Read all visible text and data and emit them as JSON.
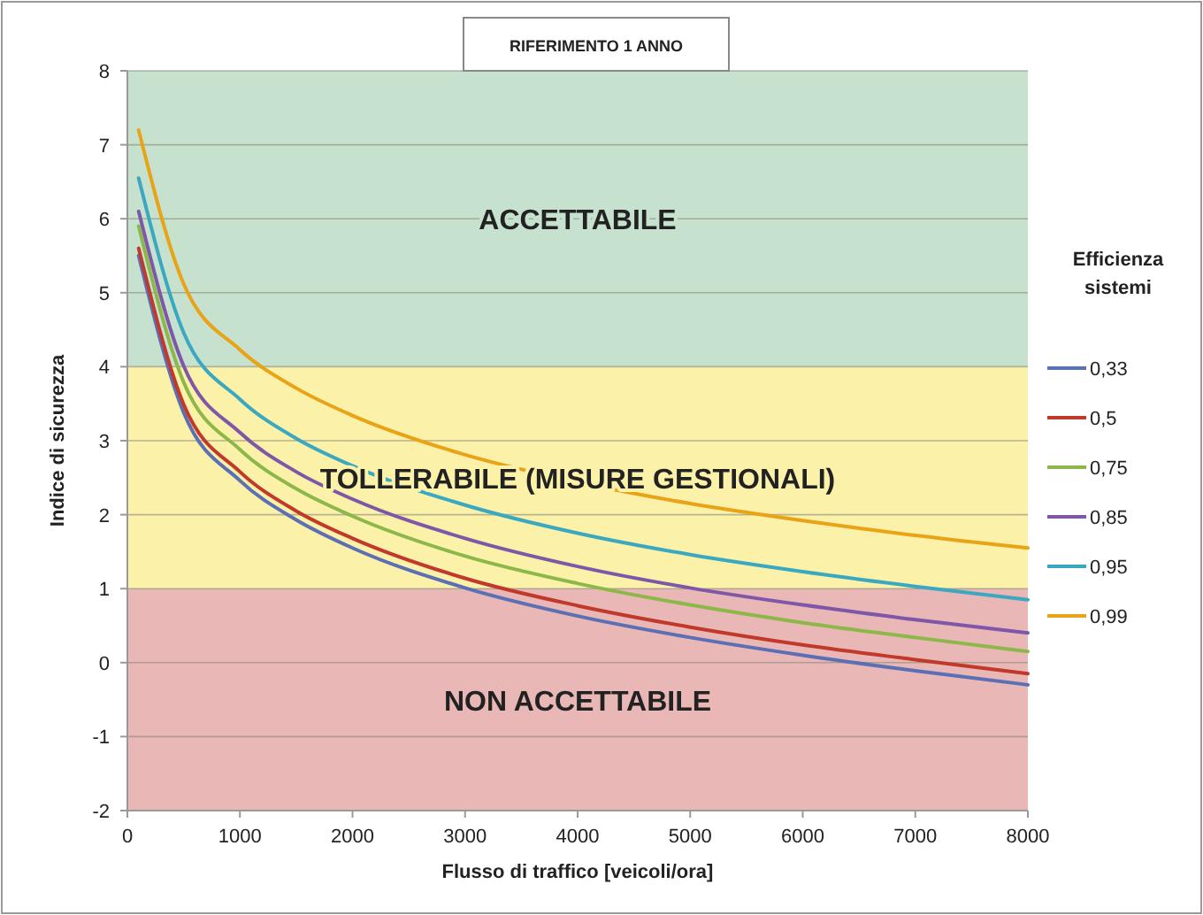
{
  "chart_data": {
    "type": "line",
    "title": "RIFERIMENTO 1 ANNO",
    "xlabel": "Flusso di traffico [veicoli/ora]",
    "ylabel": "Indice di sicurezza",
    "legend_title": "Efficienza sistemi",
    "legend": "right",
    "grid": "y",
    "marker": "none",
    "line_style": "solid",
    "x": [
      100,
      500,
      1000,
      1500,
      2000,
      3000,
      4000,
      5000,
      6000,
      7000,
      8000
    ],
    "xlim": [
      0,
      8000
    ],
    "xticks": [
      0,
      1000,
      2000,
      3000,
      4000,
      5000,
      6000,
      7000,
      8000
    ],
    "ylim": [
      -2,
      8
    ],
    "yticks": [
      -2,
      -1,
      0,
      1,
      2,
      3,
      4,
      5,
      6,
      7,
      8
    ],
    "bands": [
      {
        "axis": "y",
        "from": 4,
        "to": 8,
        "label": "ACCETTABILE",
        "color": "#c6e2cf"
      },
      {
        "axis": "y",
        "from": 1,
        "to": 4,
        "label": "TOLLERABILE (MISURE GESTIONALI)",
        "color": "#fbf1a8"
      },
      {
        "axis": "y",
        "from": -2,
        "to": 1,
        "label": "NON ACCETTABILE",
        "color": "#e9b7b5"
      }
    ],
    "series": [
      {
        "name": "0,33",
        "color": "#5b6fb5",
        "values": [
          5.5,
          3.38,
          2.46,
          1.93,
          1.55,
          1.01,
          0.63,
          0.34,
          0.1,
          -0.11,
          -0.3
        ]
      },
      {
        "name": "0,5",
        "color": "#c0392b",
        "values": [
          5.6,
          3.49,
          2.58,
          2.05,
          1.68,
          1.14,
          0.77,
          0.48,
          0.24,
          0.04,
          -0.15
        ]
      },
      {
        "name": "0,75",
        "color": "#8cb84a",
        "values": [
          5.9,
          3.79,
          2.88,
          2.35,
          1.98,
          1.44,
          1.07,
          0.78,
          0.54,
          0.34,
          0.15
        ]
      },
      {
        "name": "0,85",
        "color": "#7e57a8",
        "values": [
          6.1,
          4.01,
          3.11,
          2.58,
          2.21,
          1.68,
          1.3,
          1.01,
          0.78,
          0.58,
          0.4
        ]
      },
      {
        "name": "0,95",
        "color": "#3aa8c1",
        "values": [
          6.55,
          4.46,
          3.56,
          3.03,
          2.66,
          2.13,
          1.75,
          1.46,
          1.23,
          1.03,
          0.85
        ]
      },
      {
        "name": "0,99",
        "color": "#e8a317",
        "values": [
          7.2,
          5.12,
          4.23,
          3.71,
          3.34,
          2.81,
          2.44,
          2.15,
          1.92,
          1.72,
          1.55
        ]
      }
    ]
  }
}
